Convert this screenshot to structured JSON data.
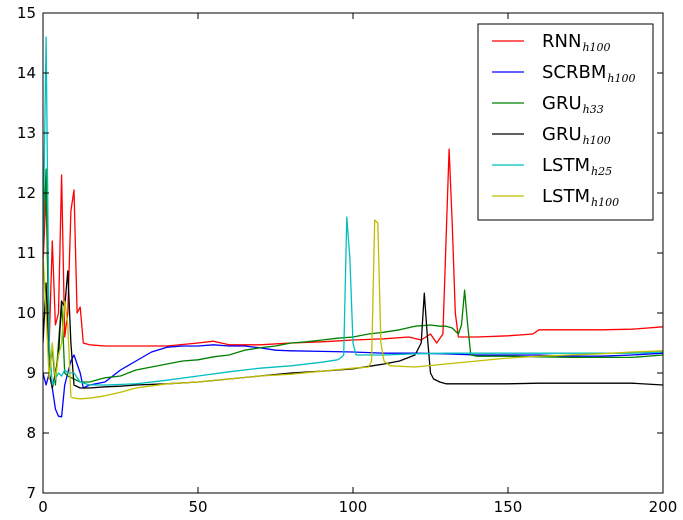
{
  "chart_data": {
    "type": "line",
    "xlim": [
      0,
      200
    ],
    "ylim": [
      7,
      15
    ],
    "xticks": [
      0,
      50,
      100,
      150,
      200
    ],
    "yticks": [
      7,
      8,
      9,
      10,
      11,
      12,
      13,
      14,
      15
    ],
    "grid": false,
    "legend_position": "top-right",
    "series": [
      {
        "name": "RNN",
        "subscript": "h100",
        "color": "#ff0000",
        "points": [
          [
            0,
            10.8
          ],
          [
            1,
            12.0
          ],
          [
            2,
            9.5
          ],
          [
            3,
            11.2
          ],
          [
            4,
            9.8
          ],
          [
            5,
            10.0
          ],
          [
            6,
            12.3
          ],
          [
            7,
            9.6
          ],
          [
            8,
            10.0
          ],
          [
            9,
            11.7
          ],
          [
            10,
            12.05
          ],
          [
            11,
            10.0
          ],
          [
            12,
            10.1
          ],
          [
            13,
            9.5
          ],
          [
            15,
            9.47
          ],
          [
            20,
            9.45
          ],
          [
            30,
            9.45
          ],
          [
            40,
            9.45
          ],
          [
            50,
            9.5
          ],
          [
            55,
            9.53
          ],
          [
            60,
            9.47
          ],
          [
            70,
            9.47
          ],
          [
            80,
            9.5
          ],
          [
            90,
            9.52
          ],
          [
            100,
            9.55
          ],
          [
            110,
            9.57
          ],
          [
            118,
            9.6
          ],
          [
            122,
            9.55
          ],
          [
            125,
            9.65
          ],
          [
            127,
            9.5
          ],
          [
            129,
            9.65
          ],
          [
            131,
            12.73
          ],
          [
            132,
            11.5
          ],
          [
            133,
            10.0
          ],
          [
            134,
            9.6
          ],
          [
            136,
            9.6
          ],
          [
            140,
            9.6
          ],
          [
            150,
            9.62
          ],
          [
            158,
            9.65
          ],
          [
            160,
            9.72
          ],
          [
            170,
            9.72
          ],
          [
            180,
            9.72
          ],
          [
            190,
            9.73
          ],
          [
            200,
            9.77
          ]
        ]
      },
      {
        "name": "SCRBM",
        "subscript": "h100",
        "color": "#0000ff",
        "points": [
          [
            0,
            9.0
          ],
          [
            1,
            8.8
          ],
          [
            2,
            9.0
          ],
          [
            3,
            8.75
          ],
          [
            4,
            8.4
          ],
          [
            5,
            8.28
          ],
          [
            6,
            8.27
          ],
          [
            7,
            8.8
          ],
          [
            8,
            9.0
          ],
          [
            9,
            9.2
          ],
          [
            10,
            9.3
          ],
          [
            12,
            9.0
          ],
          [
            13,
            8.75
          ],
          [
            15,
            8.8
          ],
          [
            20,
            8.85
          ],
          [
            25,
            9.05
          ],
          [
            30,
            9.2
          ],
          [
            35,
            9.35
          ],
          [
            40,
            9.43
          ],
          [
            45,
            9.45
          ],
          [
            50,
            9.45
          ],
          [
            55,
            9.47
          ],
          [
            60,
            9.45
          ],
          [
            65,
            9.45
          ],
          [
            70,
            9.42
          ],
          [
            75,
            9.38
          ],
          [
            80,
            9.37
          ],
          [
            90,
            9.36
          ],
          [
            100,
            9.35
          ],
          [
            110,
            9.33
          ],
          [
            120,
            9.33
          ],
          [
            130,
            9.32
          ],
          [
            140,
            9.3
          ],
          [
            150,
            9.3
          ],
          [
            160,
            9.3
          ],
          [
            170,
            9.28
          ],
          [
            180,
            9.28
          ],
          [
            190,
            9.3
          ],
          [
            200,
            9.33
          ]
        ]
      },
      {
        "name": "GRU",
        "subscript": "h33",
        "color": "#008000",
        "points": [
          [
            0,
            11.2
          ],
          [
            1,
            12.4
          ],
          [
            2,
            9.0
          ],
          [
            3,
            9.4
          ],
          [
            4,
            8.8
          ],
          [
            5,
            9.5
          ],
          [
            6,
            10.2
          ],
          [
            7,
            9.0
          ],
          [
            8,
            8.95
          ],
          [
            10,
            8.9
          ],
          [
            12,
            8.85
          ],
          [
            15,
            8.85
          ],
          [
            20,
            8.92
          ],
          [
            25,
            8.95
          ],
          [
            30,
            9.05
          ],
          [
            35,
            9.1
          ],
          [
            40,
            9.15
          ],
          [
            45,
            9.2
          ],
          [
            50,
            9.22
          ],
          [
            55,
            9.27
          ],
          [
            60,
            9.3
          ],
          [
            65,
            9.38
          ],
          [
            70,
            9.42
          ],
          [
            75,
            9.45
          ],
          [
            80,
            9.5
          ],
          [
            85,
            9.52
          ],
          [
            90,
            9.55
          ],
          [
            95,
            9.58
          ],
          [
            100,
            9.6
          ],
          [
            105,
            9.65
          ],
          [
            110,
            9.68
          ],
          [
            115,
            9.72
          ],
          [
            120,
            9.78
          ],
          [
            125,
            9.8
          ],
          [
            128,
            9.78
          ],
          [
            130,
            9.78
          ],
          [
            132,
            9.75
          ],
          [
            134,
            9.65
          ],
          [
            135,
            9.8
          ],
          [
            136,
            10.38
          ],
          [
            137,
            9.8
          ],
          [
            138,
            9.3
          ],
          [
            140,
            9.28
          ],
          [
            150,
            9.28
          ],
          [
            160,
            9.27
          ],
          [
            170,
            9.26
          ],
          [
            180,
            9.26
          ],
          [
            190,
            9.26
          ],
          [
            200,
            9.3
          ]
        ]
      },
      {
        "name": "GRU",
        "subscript": "h100",
        "color": "#000000",
        "points": [
          [
            0,
            9.5
          ],
          [
            1,
            10.5
          ],
          [
            2,
            9.0
          ],
          [
            3,
            8.75
          ],
          [
            4,
            9.0
          ],
          [
            5,
            9.3
          ],
          [
            6,
            10.2
          ],
          [
            7,
            10.1
          ],
          [
            8,
            10.7
          ],
          [
            9,
            9.5
          ],
          [
            10,
            8.8
          ],
          [
            12,
            8.75
          ],
          [
            15,
            8.75
          ],
          [
            20,
            8.77
          ],
          [
            25,
            8.78
          ],
          [
            30,
            8.8
          ],
          [
            40,
            8.82
          ],
          [
            50,
            8.85
          ],
          [
            60,
            8.9
          ],
          [
            70,
            8.95
          ],
          [
            80,
            9.0
          ],
          [
            90,
            9.03
          ],
          [
            100,
            9.07
          ],
          [
            110,
            9.15
          ],
          [
            115,
            9.2
          ],
          [
            120,
            9.3
          ],
          [
            122,
            9.5
          ],
          [
            123,
            10.33
          ],
          [
            124,
            9.6
          ],
          [
            125,
            9.0
          ],
          [
            126,
            8.9
          ],
          [
            128,
            8.85
          ],
          [
            130,
            8.82
          ],
          [
            140,
            8.82
          ],
          [
            150,
            8.82
          ],
          [
            160,
            8.83
          ],
          [
            170,
            8.83
          ],
          [
            180,
            8.83
          ],
          [
            190,
            8.83
          ],
          [
            200,
            8.8
          ]
        ]
      },
      {
        "name": "LSTM",
        "subscript": "h25",
        "color": "#00bfbf",
        "points": [
          [
            0,
            11.0
          ],
          [
            1,
            14.6
          ],
          [
            2,
            9.5
          ],
          [
            3,
            8.8
          ],
          [
            4,
            8.9
          ],
          [
            5,
            9.0
          ],
          [
            6,
            8.95
          ],
          [
            7,
            9.05
          ],
          [
            8,
            9.0
          ],
          [
            10,
            9.0
          ],
          [
            12,
            8.85
          ],
          [
            15,
            8.8
          ],
          [
            20,
            8.8
          ],
          [
            30,
            8.82
          ],
          [
            40,
            8.88
          ],
          [
            50,
            8.95
          ],
          [
            60,
            9.02
          ],
          [
            70,
            9.08
          ],
          [
            80,
            9.12
          ],
          [
            90,
            9.18
          ],
          [
            95,
            9.22
          ],
          [
            96,
            9.25
          ],
          [
            97,
            9.3
          ],
          [
            98,
            11.6
          ],
          [
            99,
            10.9
          ],
          [
            100,
            9.5
          ],
          [
            101,
            9.3
          ],
          [
            105,
            9.3
          ],
          [
            110,
            9.3
          ],
          [
            120,
            9.32
          ],
          [
            130,
            9.33
          ],
          [
            140,
            9.33
          ],
          [
            150,
            9.33
          ],
          [
            160,
            9.33
          ],
          [
            170,
            9.33
          ],
          [
            180,
            9.33
          ],
          [
            190,
            9.33
          ],
          [
            200,
            9.35
          ]
        ]
      },
      {
        "name": "LSTM",
        "subscript": "h100",
        "color": "#bfbf00",
        "points": [
          [
            0,
            11.0
          ],
          [
            1,
            10.0
          ],
          [
            2,
            8.9
          ],
          [
            3,
            9.5
          ],
          [
            4,
            8.9
          ],
          [
            5,
            9.3
          ],
          [
            6,
            9.5
          ],
          [
            7,
            10.2
          ],
          [
            8,
            9.8
          ],
          [
            9,
            8.6
          ],
          [
            10,
            8.58
          ],
          [
            12,
            8.57
          ],
          [
            15,
            8.58
          ],
          [
            20,
            8.62
          ],
          [
            25,
            8.68
          ],
          [
            30,
            8.75
          ],
          [
            40,
            8.82
          ],
          [
            50,
            8.85
          ],
          [
            60,
            8.9
          ],
          [
            70,
            8.95
          ],
          [
            80,
            8.98
          ],
          [
            90,
            9.03
          ],
          [
            100,
            9.08
          ],
          [
            105,
            9.1
          ],
          [
            106,
            9.2
          ],
          [
            107,
            11.55
          ],
          [
            108,
            11.5
          ],
          [
            109,
            9.5
          ],
          [
            110,
            9.2
          ],
          [
            112,
            9.12
          ],
          [
            120,
            9.1
          ],
          [
            130,
            9.15
          ],
          [
            140,
            9.2
          ],
          [
            150,
            9.25
          ],
          [
            160,
            9.28
          ],
          [
            170,
            9.3
          ],
          [
            180,
            9.32
          ],
          [
            190,
            9.35
          ],
          [
            200,
            9.37
          ]
        ]
      }
    ]
  }
}
